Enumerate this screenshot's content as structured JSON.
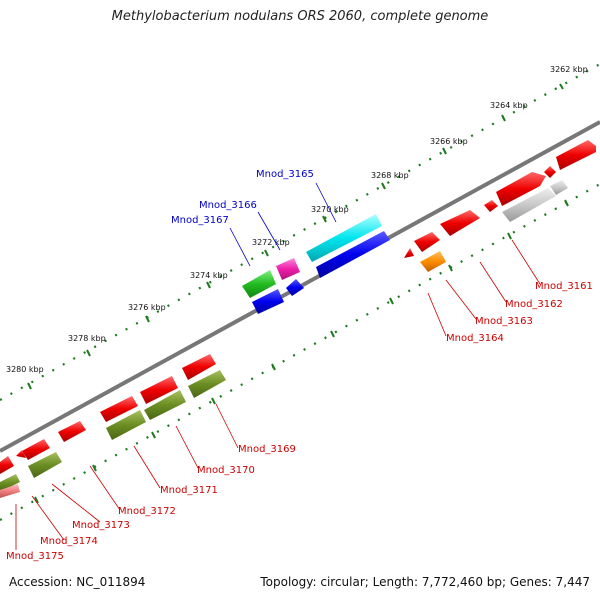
{
  "title": "Methylobacterium nodulans ORS 2060, complete genome",
  "accession": "Accession: NC_011894",
  "summary": "Topology: circular; Length: 7,772,460 bp; Genes: 7,447",
  "colors": {
    "backbone": "#888888",
    "tick": "#1e7a1e",
    "blue_label": "#0000cc",
    "red_label": "#cc0000"
  },
  "scale_labels": [
    "3262 kbp",
    "3264 kbp",
    "3266 kbp",
    "3268 kbp",
    "3270 kbp",
    "3272 kbp",
    "3274 kbp",
    "3276 kbp",
    "3278 kbp",
    "3280 kbp"
  ],
  "genes_labels_top": [
    "Mnod_3165",
    "Mnod_3166",
    "Mnod_3167"
  ],
  "genes_labels_bottom": [
    "Mnod_3161",
    "Mnod_3162",
    "Mnod_3163",
    "Mnod_3164",
    "Mnod_3169",
    "Mnod_3170",
    "Mnod_3171",
    "Mnod_3172",
    "Mnod_3173",
    "Mnod_3174",
    "Mnod_3175"
  ]
}
